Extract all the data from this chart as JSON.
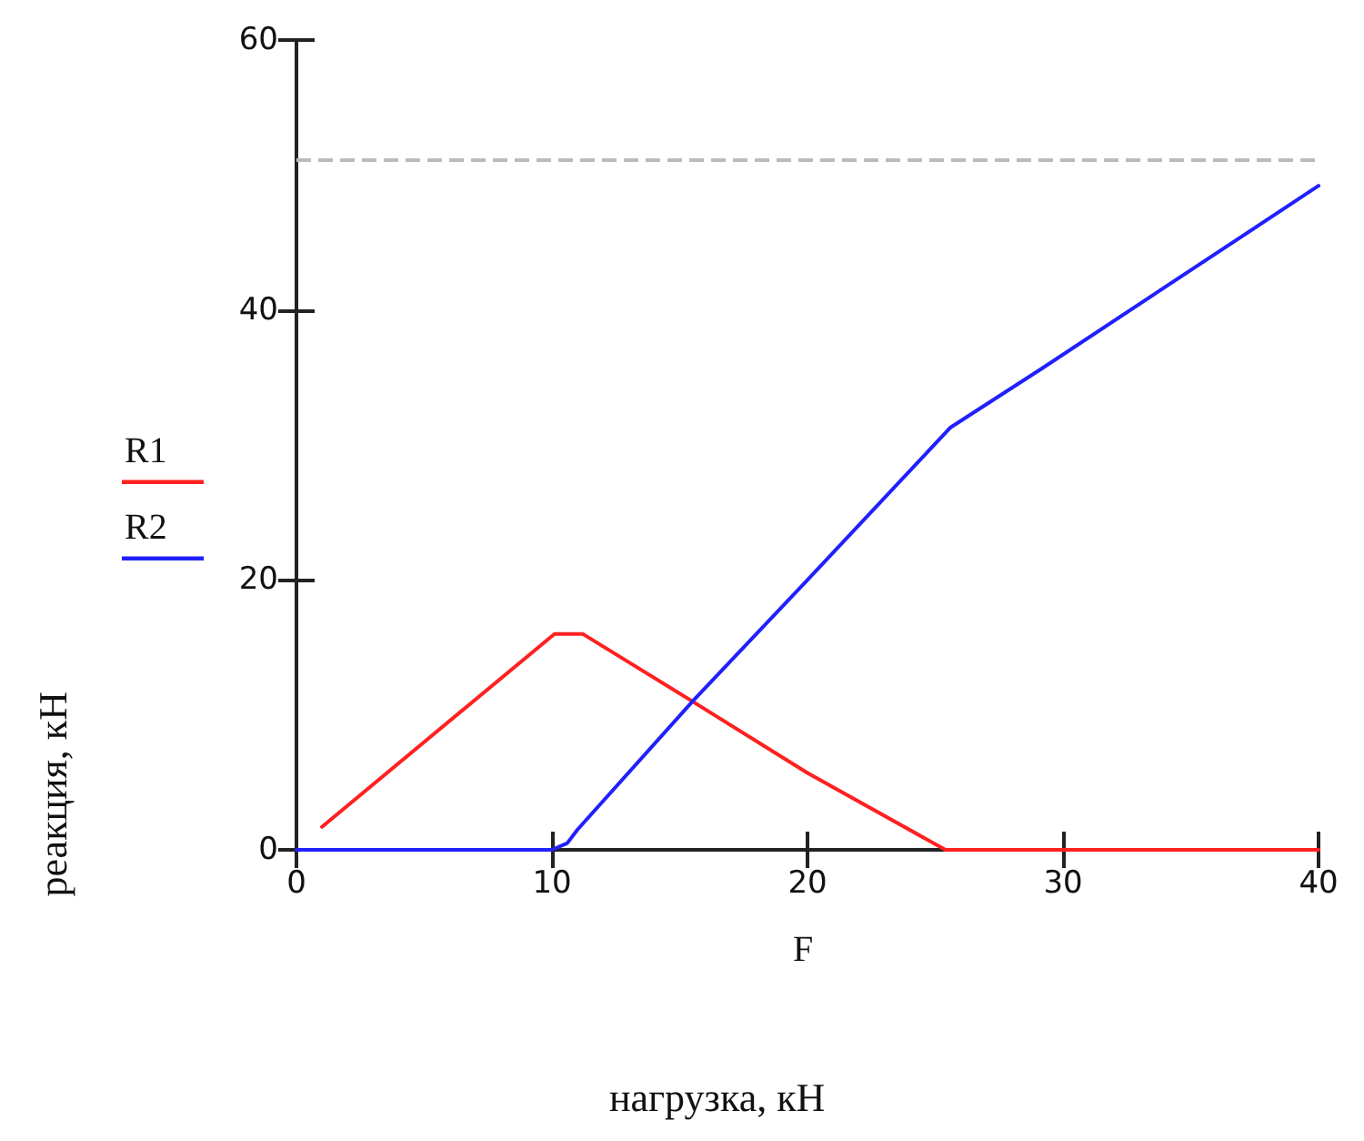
{
  "chart_data": {
    "type": "line",
    "xlabel": "F",
    "ylabel": "реакция, кН",
    "annotations": [
      "нагрузка, кН"
    ],
    "xlim": [
      0,
      40
    ],
    "xticks": [
      0,
      10,
      20,
      30,
      40
    ],
    "ylim": [
      0,
      60
    ],
    "yticks": [
      0,
      20,
      40,
      60
    ],
    "grid": false,
    "legend": "left",
    "marker": "none",
    "line_style": "solid",
    "series": [
      {
        "name": "R1",
        "color": "#ff2020",
        "x": [
          1,
          10.1,
          11.2,
          15.5,
          20,
          25.4,
          40
        ],
        "values": [
          1.7,
          16,
          16,
          11,
          5.7,
          0,
          0
        ]
      },
      {
        "name": "R2",
        "color": "#2020ff",
        "x": [
          0,
          10,
          10.6,
          11,
          15.5,
          20,
          25.6,
          29.2,
          40
        ],
        "values": [
          0,
          0,
          0.5,
          1.5,
          11,
          20,
          31.3,
          35.7,
          49.2
        ]
      }
    ],
    "ref_lines": [
      {
        "axis": "y",
        "value": 51.1,
        "color": "#bbbbbb",
        "line_style": "dashed"
      }
    ]
  }
}
